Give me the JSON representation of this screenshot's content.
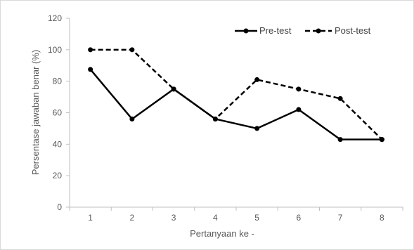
{
  "chart_data": {
    "type": "line",
    "title": "",
    "xlabel": "Pertanyaan ke -",
    "ylabel": "Persentase jawaban benar (%)",
    "categories": [
      "1",
      "2",
      "3",
      "4",
      "5",
      "6",
      "7",
      "8"
    ],
    "ylim": [
      0,
      120
    ],
    "yticks": [
      "0",
      "20",
      "40",
      "60",
      "80",
      "100",
      "120"
    ],
    "grid": false,
    "legend_position": "top-right",
    "series": [
      {
        "name": "Pre-test",
        "values": [
          87.5,
          56,
          75,
          56,
          50,
          62,
          43,
          43
        ],
        "line_style": "solid",
        "color": "#000000"
      },
      {
        "name": "Post-test",
        "values": [
          100,
          100,
          75,
          56,
          81,
          75,
          69,
          43
        ],
        "line_style": "dashed",
        "color": "#000000"
      }
    ]
  }
}
